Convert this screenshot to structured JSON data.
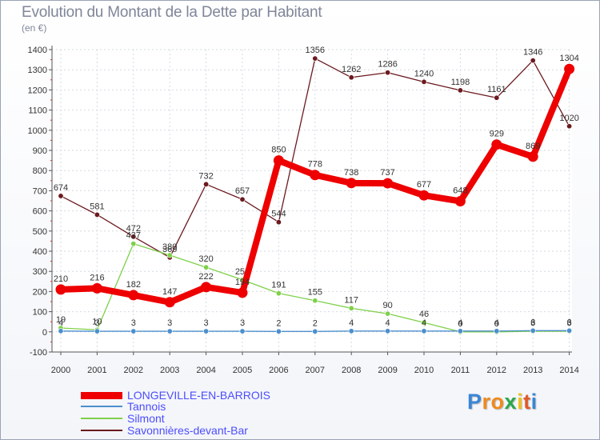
{
  "header": {
    "title": "Evolution du Montant de la Dette par Habitant",
    "unit": "(en €)"
  },
  "chart_data": {
    "type": "line",
    "title": "Evolution du Montant de la Dette par Habitant",
    "ylabel": "(en €)",
    "xlabel": "",
    "ylim": [
      -100,
      1400
    ],
    "yticks": [
      -100,
      0,
      100,
      200,
      300,
      400,
      500,
      600,
      700,
      800,
      900,
      1000,
      1100,
      1200,
      1300,
      1400
    ],
    "categories": [
      "2000",
      "2001",
      "2002",
      "2003",
      "2004",
      "2005",
      "2006",
      "2007",
      "2008",
      "2009",
      "2010",
      "2011",
      "2012",
      "2013",
      "2014"
    ],
    "grid": true,
    "series": [
      {
        "name": "Savonnières-devant-Bar",
        "color": "#6b1a1f",
        "values": [
          674,
          581,
          472,
          369,
          732,
          657,
          544,
          1356,
          1262,
          1286,
          1240,
          1198,
          1161,
          1346,
          1020
        ]
      },
      {
        "name": "Silmont",
        "color": "#7fd04a",
        "values": [
          19,
          10,
          437,
          380,
          320,
          258,
          191,
          155,
          117,
          90,
          46,
          0,
          0,
          3,
          3
        ]
      },
      {
        "name": "Tannois",
        "color": "#4c8fcc",
        "values": [
          4,
          3,
          3,
          3,
          3,
          3,
          2,
          2,
          4,
          4,
          4,
          4,
          4,
          6,
          6
        ]
      },
      {
        "name": "LONGEVILLE-EN-BARROIS",
        "color": "#ee0000",
        "values": [
          210,
          216,
          182,
          147,
          222,
          194,
          850,
          778,
          738,
          737,
          677,
          648,
          929,
          869,
          1304
        ]
      }
    ],
    "legend": [
      "LONGEVILLE-EN-BARROIS",
      "Tannois",
      "Silmont",
      "Savonnières-devant-Bar"
    ]
  },
  "legend_items": [
    {
      "label": "LONGEVILLE-EN-BARROIS",
      "color": "#ee0000"
    },
    {
      "label": "Tannois",
      "color": "#4c8fcc"
    },
    {
      "label": "Silmont",
      "color": "#7fd04a"
    },
    {
      "label": "Savonnières-devant-Bar",
      "color": "#6b1a1f"
    }
  ],
  "logo": {
    "letters": [
      "P",
      "r",
      "o",
      "x",
      "i",
      "t",
      "i"
    ],
    "colors": [
      "#3a86d6",
      "#f08a1c",
      "#f08a1c",
      "#2aa84a",
      "#f0c21c",
      "#e05a2a",
      "#3a86d6"
    ]
  }
}
